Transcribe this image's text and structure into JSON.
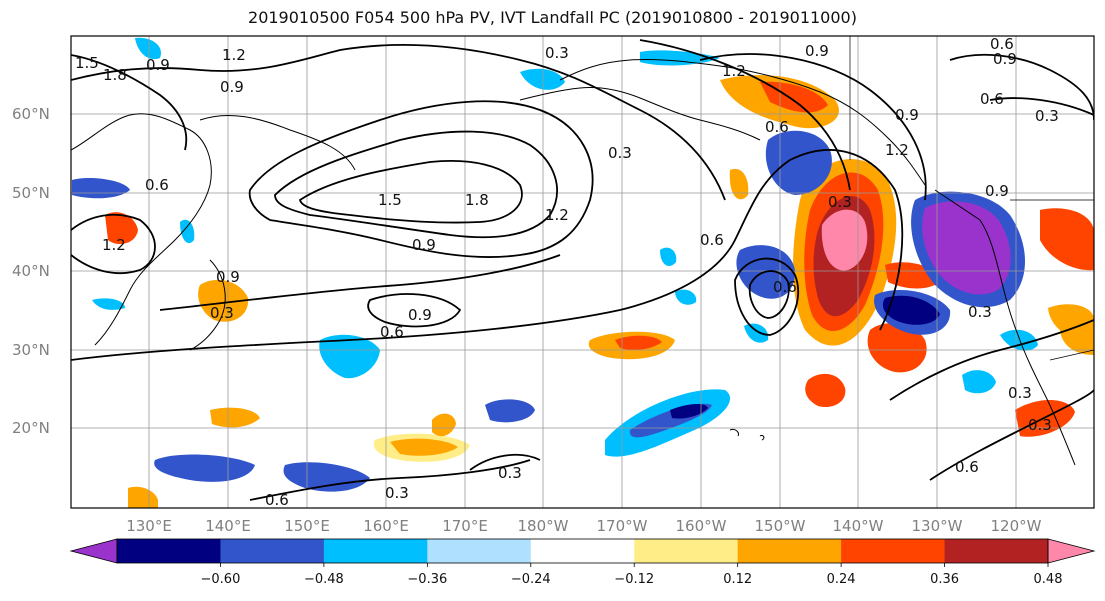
{
  "title": "2019010500 F054 500 hPa PV, IVT Landfall PC (2019010800 - 2019011000)",
  "lat_labels": [
    "60°N",
    "50°N",
    "40°N",
    "30°N",
    "20°N"
  ],
  "lon_labels": [
    "130°E",
    "140°E",
    "150°E",
    "160°E",
    "170°E",
    "180°W",
    "170°W",
    "160°W",
    "150°W",
    "140°W",
    "130°W",
    "120°W"
  ],
  "contour_labels": [
    "1.5",
    "1.8",
    "0.9",
    "1.2",
    "0.9",
    "0.3",
    "0.9",
    "0.6",
    "0.9",
    "1.2",
    "0.6",
    "0.6",
    "0.3",
    "0.6",
    "1.2",
    "1.5",
    "1.8",
    "1.2",
    "0.9",
    "0.3",
    "0.6",
    "0.9",
    "0.6",
    "0.9",
    "0.3",
    "0.6",
    "0.3",
    "0.9",
    "0.3",
    "0.3",
    "0.3",
    "0.6",
    "0.3",
    "0.3",
    "0.6",
    "1.2",
    "0.9"
  ],
  "colorbar": {
    "colors": [
      "#9933cc",
      "#000080",
      "#3355cc",
      "#00bfff",
      "#b0e0ff",
      "#ffffff",
      "#ffee88",
      "#ffa500",
      "#ff4400",
      "#b22222",
      "#ff88aa"
    ],
    "ticks": [
      "−0.60",
      "−0.48",
      "−0.36",
      "−0.24",
      "−0.12",
      "0.12",
      "0.24",
      "0.36",
      "0.48",
      "0.60"
    ]
  }
}
